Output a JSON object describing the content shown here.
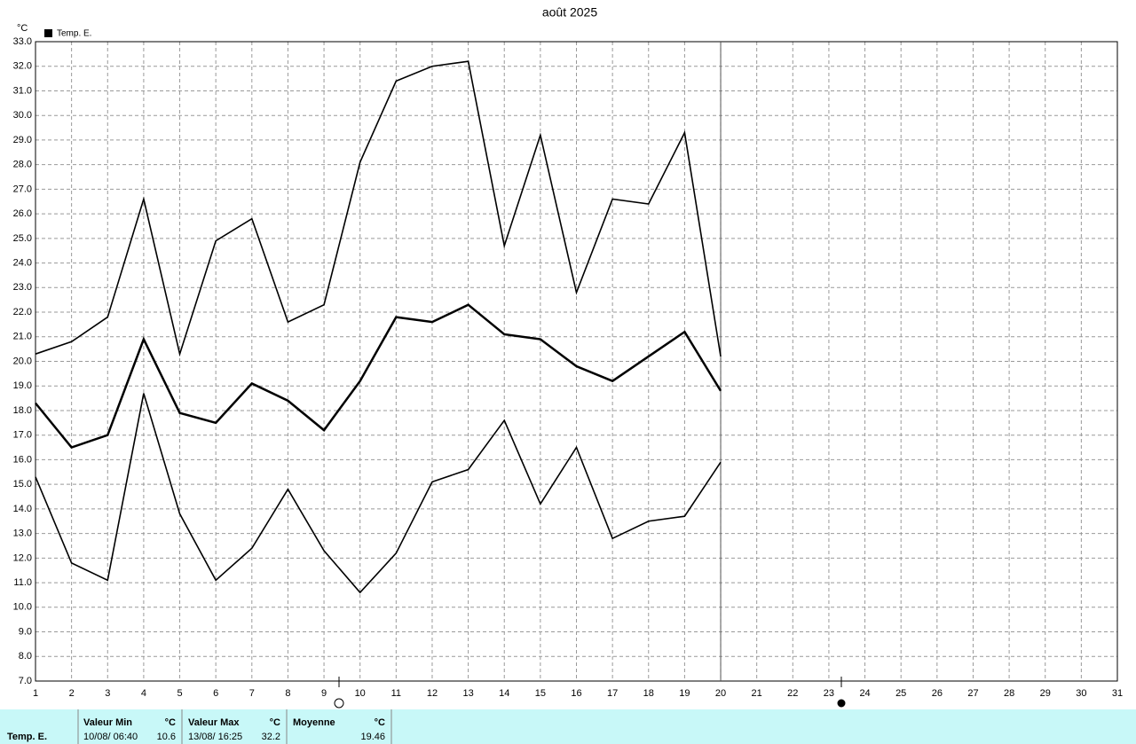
{
  "chart_data": {
    "type": "line",
    "title": "août 2025",
    "y_unit": "°C",
    "x": [
      1,
      2,
      3,
      4,
      5,
      6,
      7,
      8,
      9,
      10,
      11,
      12,
      13,
      14,
      15,
      16,
      17,
      18,
      19,
      20
    ],
    "series": [
      {
        "color": "#000000",
        "values": [
          20.3,
          20.8,
          21.8,
          26.6,
          20.3,
          24.9,
          25.8,
          21.6,
          22.3,
          28.1,
          31.4,
          32.0,
          32.2,
          24.7,
          29.2,
          22.8,
          26.6,
          26.4,
          29.3,
          20.2
        ]
      },
      {
        "name": "Temp. E.",
        "color": "#000000",
        "values": [
          18.3,
          16.5,
          17.0,
          20.9,
          17.9,
          17.5,
          19.1,
          18.4,
          17.2,
          19.2,
          21.8,
          21.6,
          22.3,
          21.1,
          20.9,
          19.8,
          19.2,
          20.2,
          21.2,
          18.8
        ]
      },
      {
        "color": "#000000",
        "values": [
          15.3,
          11.8,
          11.1,
          18.7,
          13.8,
          11.1,
          12.4,
          14.8,
          12.3,
          10.6,
          12.2,
          15.1,
          15.6,
          17.6,
          14.2,
          16.5,
          12.8,
          13.5,
          13.7,
          15.9
        ]
      }
    ],
    "xlim": [
      1,
      31
    ],
    "xticks": [
      1,
      2,
      3,
      4,
      5,
      6,
      7,
      8,
      9,
      10,
      11,
      12,
      13,
      14,
      15,
      16,
      17,
      18,
      19,
      20,
      21,
      22,
      23,
      24,
      25,
      26,
      27,
      28,
      29,
      30,
      31
    ],
    "ylim": [
      7,
      33
    ],
    "yticks": [
      {
        "value": 7,
        "label": "7.0"
      },
      {
        "value": 8,
        "label": "8.0"
      },
      {
        "value": 9,
        "label": "9.0"
      },
      {
        "value": 10,
        "label": "10.0"
      },
      {
        "value": 11,
        "label": "11.0"
      },
      {
        "value": 12,
        "label": "12.0"
      },
      {
        "value": 13,
        "label": "13.0"
      },
      {
        "value": 14,
        "label": "14.0"
      },
      {
        "value": 15,
        "label": "15.0"
      },
      {
        "value": 16,
        "label": "16.0"
      },
      {
        "value": 17,
        "label": "17.0"
      },
      {
        "value": 18,
        "label": "18.0"
      },
      {
        "value": 19,
        "label": "19.0"
      },
      {
        "value": 20,
        "label": "20.0"
      },
      {
        "value": 21,
        "label": "21.0"
      },
      {
        "value": 22,
        "label": "22.0"
      },
      {
        "value": 23,
        "label": "23.0"
      },
      {
        "value": 24,
        "label": "24.0"
      },
      {
        "value": 25,
        "label": "25.0"
      },
      {
        "value": 26,
        "label": "26.0"
      },
      {
        "value": 27,
        "label": "27.0"
      },
      {
        "value": 28,
        "label": "28.0"
      },
      {
        "value": 29,
        "label": "29.0"
      },
      {
        "value": 30,
        "label": "30.0"
      },
      {
        "value": 31,
        "label": "31.0"
      },
      {
        "value": 32,
        "label": "32.0"
      },
      {
        "value": 33,
        "label": "33.0"
      }
    ],
    "grid": true
  },
  "stats": {
    "sensor": "Temp. E.",
    "min": {
      "label": "Valeur Min",
      "unit": "°C",
      "when": "10/08/ 06:40",
      "value": "10.6"
    },
    "max": {
      "label": "Valeur Max",
      "unit": "°C",
      "when": "13/08/ 16:25",
      "value": "32.2"
    },
    "mean": {
      "label": "Moyenne",
      "unit": "°C",
      "value": "19.46"
    }
  }
}
